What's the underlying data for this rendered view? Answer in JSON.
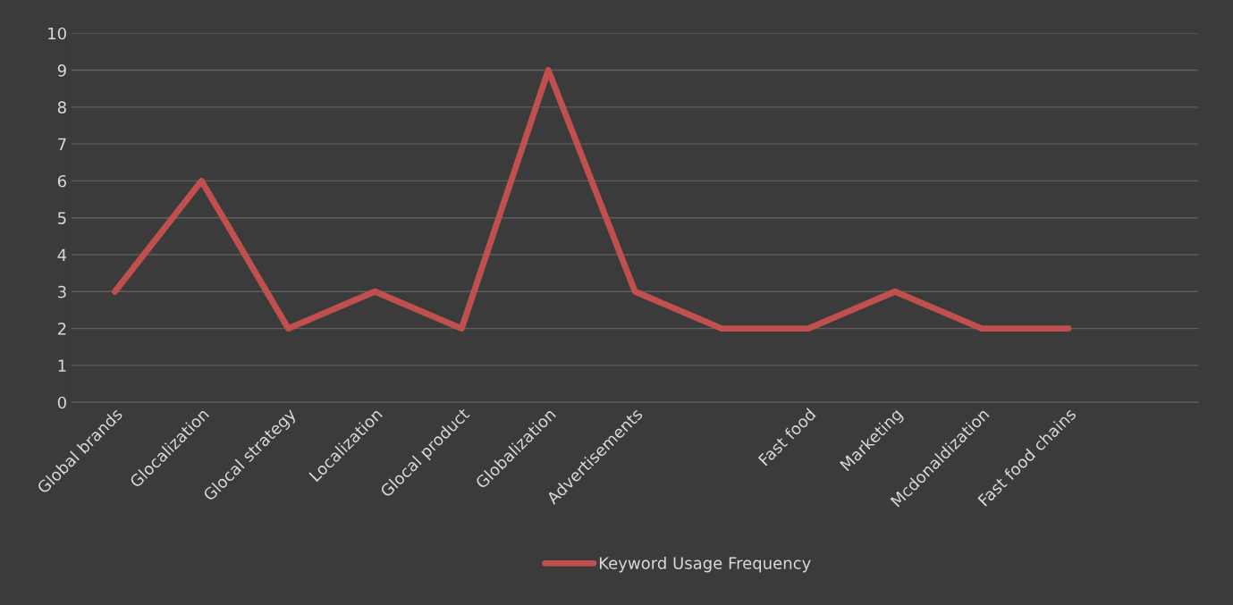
{
  "chart_data": {
    "type": "line",
    "categories": [
      "Global brands",
      "Glocalization",
      "Glocal strategy",
      "Localization",
      "Glocal product",
      "Globalization",
      "Advertisements",
      null,
      "Fast food",
      "Marketing",
      "Mcdonaldization",
      "Fast food chains",
      null
    ],
    "series": [
      {
        "name": "Keyword Usage Frequency",
        "color": "#c0504d",
        "values": [
          3,
          6,
          2,
          3,
          2,
          9,
          3,
          2,
          2,
          3,
          2,
          2,
          null
        ]
      }
    ],
    "ylim": [
      0,
      10
    ],
    "yticks": [
      0,
      1,
      2,
      3,
      4,
      5,
      6,
      7,
      8,
      9,
      10
    ],
    "grid": "y",
    "legend": "bottom",
    "marker": "none",
    "line_style": "solid"
  }
}
